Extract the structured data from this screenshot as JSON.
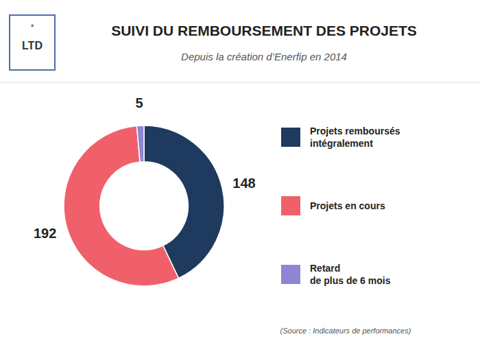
{
  "chart_data": {
    "type": "donut",
    "title": "SUIVI DU REMBOURSEMENT DES PROJETS",
    "subtitle": "Depuis la création d’Enerfip en 2014",
    "categories": [
      "Projets remboursés\nintégralement",
      "Projets en cours",
      "Retard\nde plus de 6 mois"
    ],
    "values": [
      148,
      192,
      5
    ],
    "colors": [
      "#1e3a5f",
      "#f0606a",
      "#8e86d4"
    ],
    "data_labels": true,
    "legend": "right",
    "annotations": [
      "LTD",
      "*",
      "(Source : Indicateurs de performances)"
    ]
  }
}
